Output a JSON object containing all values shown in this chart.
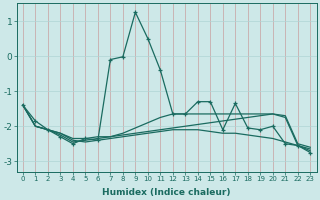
{
  "xlabel": "Humidex (Indice chaleur)",
  "bg_color": "#cde8e8",
  "grid_color": "#b0d4d4",
  "line_color": "#1a6b60",
  "xlim": [
    -0.5,
    23.5
  ],
  "ylim": [
    -3.3,
    1.5
  ],
  "yticks": [
    -3,
    -2,
    -1,
    0,
    1
  ],
  "xticks": [
    0,
    1,
    2,
    3,
    4,
    5,
    6,
    7,
    8,
    9,
    10,
    11,
    12,
    13,
    14,
    15,
    16,
    17,
    18,
    19,
    20,
    21,
    22,
    23
  ],
  "series1_x": [
    0,
    1,
    2,
    3,
    4,
    5,
    6,
    7,
    8,
    9,
    10,
    11,
    12,
    13,
    14,
    15,
    16,
    17,
    18,
    19,
    20,
    21,
    22,
    23
  ],
  "series1_y": [
    -1.4,
    -1.85,
    -2.1,
    -2.3,
    -2.5,
    -2.35,
    -2.4,
    -0.1,
    -0.02,
    1.25,
    0.5,
    -0.4,
    -1.65,
    -1.65,
    -1.3,
    -1.3,
    -2.1,
    -1.35,
    -2.05,
    -2.1,
    -2.0,
    -2.5,
    -2.55,
    -2.75
  ],
  "series2_x": [
    0,
    1,
    2,
    3,
    4,
    5,
    6,
    7,
    8,
    9,
    10,
    11,
    12,
    13,
    14,
    15,
    16,
    17,
    18,
    19,
    20,
    21,
    22,
    23
  ],
  "series2_y": [
    -1.4,
    -2.0,
    -2.1,
    -2.2,
    -2.35,
    -2.35,
    -2.3,
    -2.3,
    -2.25,
    -2.2,
    -2.15,
    -2.1,
    -2.05,
    -2.0,
    -1.95,
    -1.9,
    -1.85,
    -1.8,
    -1.75,
    -1.7,
    -1.65,
    -1.7,
    -2.5,
    -2.6
  ],
  "series3_x": [
    0,
    1,
    2,
    3,
    4,
    5,
    6,
    7,
    8,
    9,
    10,
    11,
    12,
    13,
    14,
    15,
    16,
    17,
    18,
    19,
    20,
    21,
    22,
    23
  ],
  "series3_y": [
    -1.4,
    -2.0,
    -2.1,
    -2.2,
    -2.4,
    -2.45,
    -2.4,
    -2.35,
    -2.3,
    -2.25,
    -2.2,
    -2.15,
    -2.1,
    -2.1,
    -2.1,
    -2.15,
    -2.2,
    -2.2,
    -2.25,
    -2.3,
    -2.35,
    -2.45,
    -2.55,
    -2.7
  ],
  "series4_x": [
    0,
    1,
    2,
    3,
    4,
    5,
    6,
    7,
    8,
    9,
    10,
    11,
    12,
    13,
    14,
    15,
    16,
    17,
    18,
    19,
    20,
    21,
    22,
    23
  ],
  "series4_y": [
    -1.4,
    -2.0,
    -2.1,
    -2.25,
    -2.45,
    -2.4,
    -2.35,
    -2.3,
    -2.2,
    -2.05,
    -1.9,
    -1.75,
    -1.65,
    -1.65,
    -1.65,
    -1.65,
    -1.65,
    -1.65,
    -1.65,
    -1.65,
    -1.65,
    -1.75,
    -2.55,
    -2.65
  ]
}
